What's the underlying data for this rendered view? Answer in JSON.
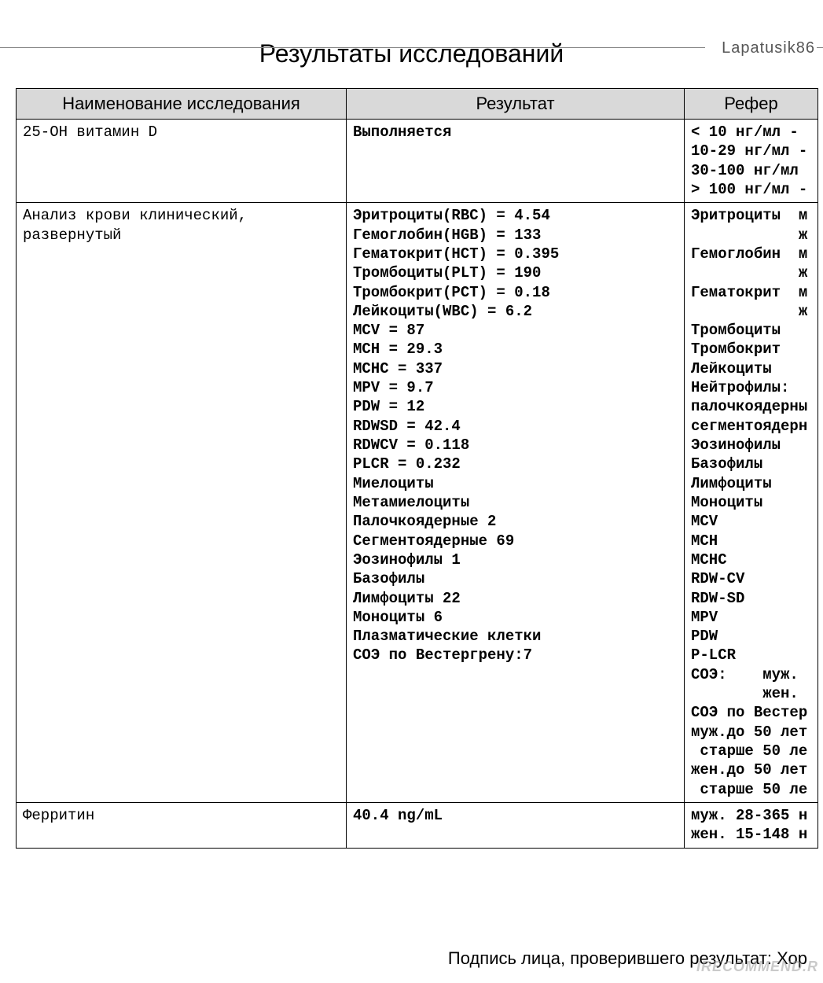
{
  "watermark_top": "Lapatusik86",
  "title": "Результаты исследований",
  "table": {
    "columns": [
      "Наименование исследования",
      "Результат",
      "Рефер"
    ],
    "rows": [
      {
        "name": "25-ОН витамин D",
        "result": "Выполняется",
        "result_bold": true,
        "ref": "< 10 нг/мл - \n10-29 нг/мл -\n30-100 нг/мл\n> 100 нг/мл -",
        "ref_bold": true
      },
      {
        "name": "Анализ крови клинический, развернутый",
        "result": "Эритроциты(RBC) = 4.54\nГемоглобин(HGB) = 133\nГематокрит(HCT) = 0.395\nТромбоциты(PLT) = 190\nТромбокрит(PCT) = 0.18\nЛейкоциты(WBC) = 6.2\nMCV = 87\nMCH = 29.3\nMCHC = 337\nMPV = 9.7\nPDW = 12\nRDWSD = 42.4\nRDWCV = 0.118\nPLCR = 0.232\nМиелоциты\nМетамиелоциты\nПалочкоядерные 2\nСегментоядерные 69\nЭозинофилы 1\nБазофилы\nЛимфоциты 22\nМоноциты 6\nПлазматические клетки\nСОЭ по Вестергрену:7\n\n\n\n\n\n\n\n",
        "result_bold": true,
        "ref": "Эритроциты  м\n            ж\nГемоглобин  м\n            ж\nГематокрит  м\n            ж\nТромбоциты\nТромбокрит\nЛейкоциты\nНейтрофилы:\nпалочкоядерны\nсегментоядерн\nЭозинофилы\nБазофилы\nЛимфоциты\nМоноциты\nMCV\nMCH\nMCHC\nRDW-CV\nRDW-SD\nMPV\nPDW\nP-LCR\nСОЭ:    муж.\n        жен.\nСОЭ по Вестер\nмуж.до 50 лет\n старше 50 ле\nжен.до 50 лет\n старше 50 ле\n",
        "ref_bold": true
      },
      {
        "name": "Ферритин",
        "result": "40.4 ng/mL",
        "result_bold": true,
        "ref": "муж. 28-365 н\nжен. 15-148 н\n",
        "ref_bold": true
      }
    ]
  },
  "footer": "Подпись лица, проверившего результат: Хор",
  "watermark_bottom": "IRECOMMEND.R"
}
